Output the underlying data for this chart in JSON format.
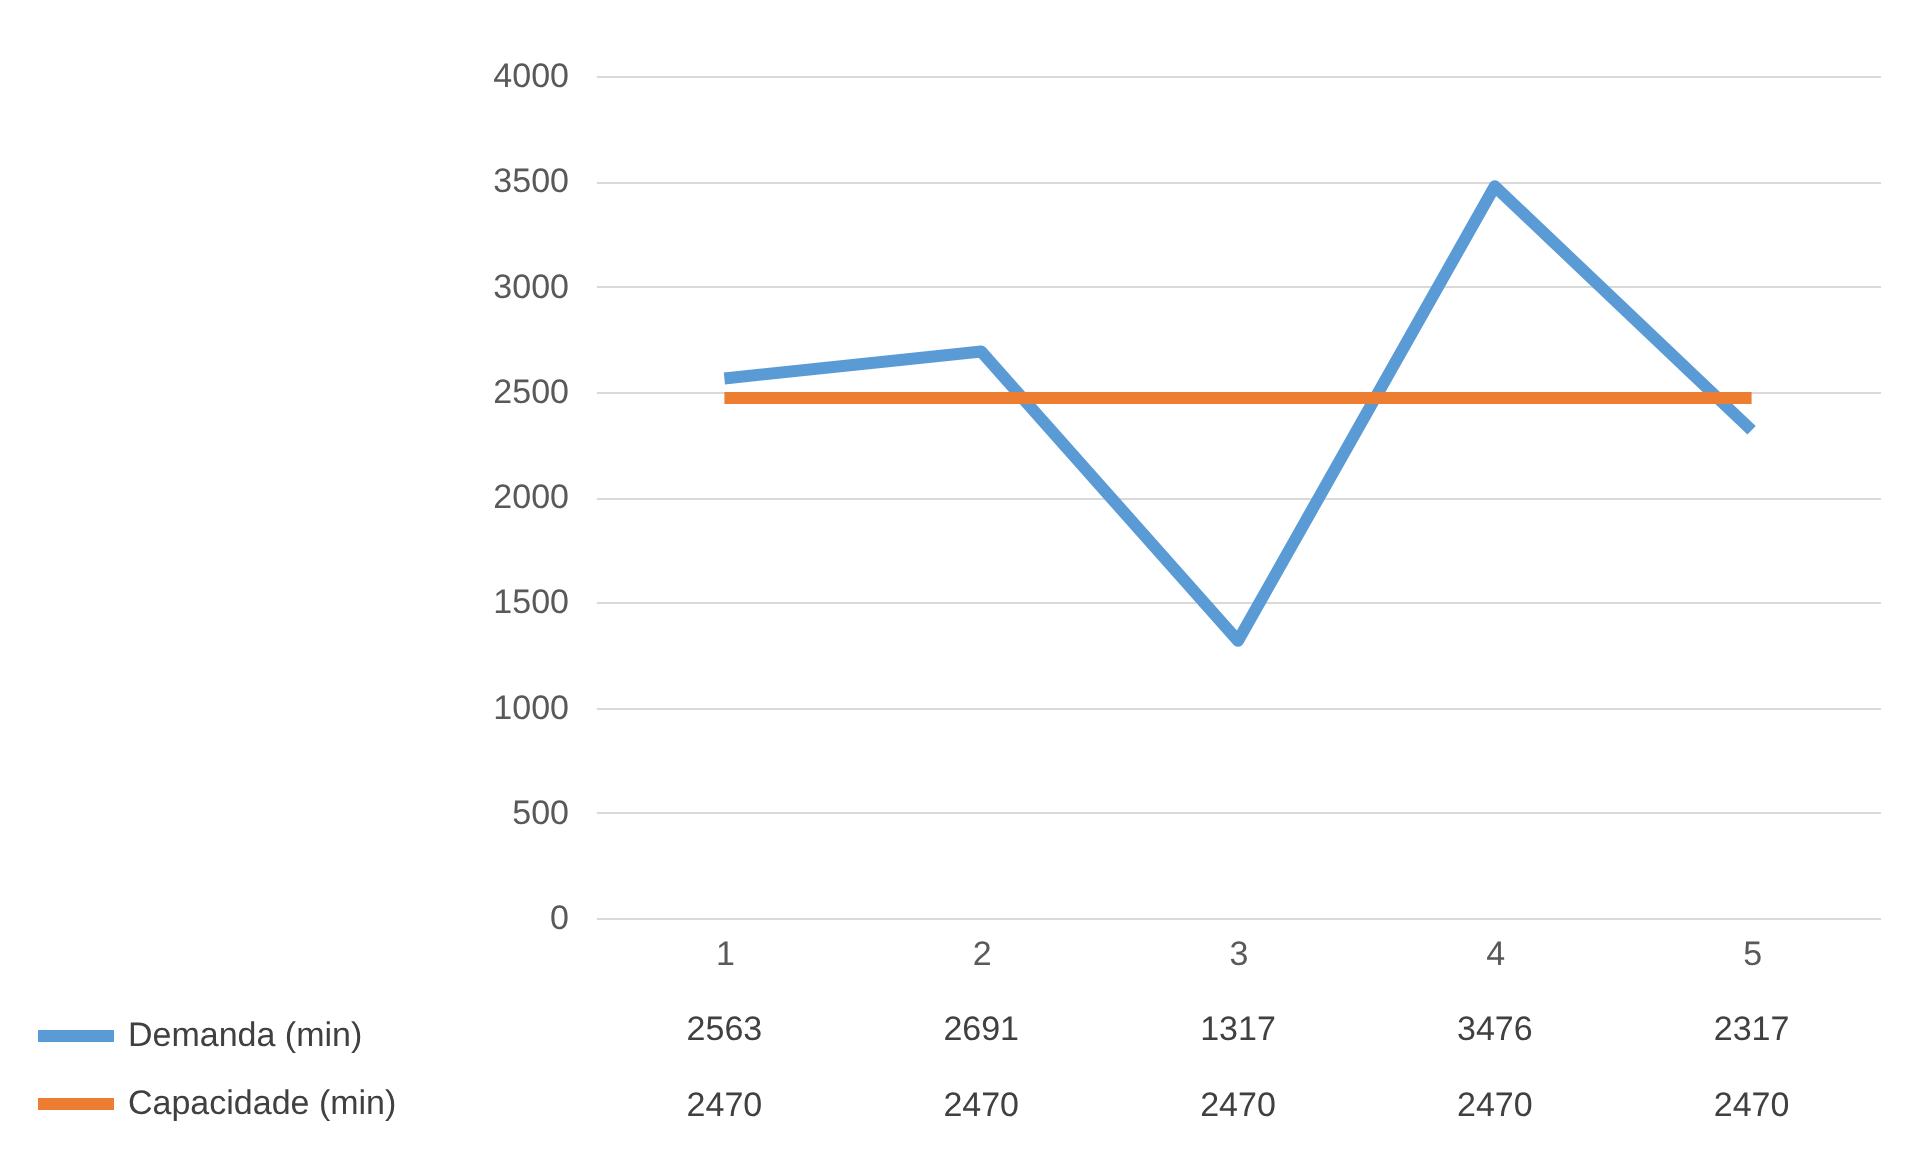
{
  "chart_data": {
    "type": "line",
    "categories": [
      "1",
      "2",
      "3",
      "4",
      "5"
    ],
    "series": [
      {
        "name": "Demanda (min)",
        "color": "#5b9bd5",
        "values": [
          2563,
          2691,
          1317,
          3476,
          2317
        ]
      },
      {
        "name": "Capacidade (min)",
        "color": "#ed7d31",
        "values": [
          2470,
          2470,
          2470,
          2470,
          2470
        ]
      }
    ],
    "ylim": [
      0,
      4000
    ],
    "yticks": [
      0,
      500,
      1000,
      1500,
      2000,
      2500,
      3000,
      3500,
      4000
    ],
    "grid": "y",
    "legend": "bottom",
    "data_labels": true,
    "marker": "none",
    "line_style": "solid"
  }
}
